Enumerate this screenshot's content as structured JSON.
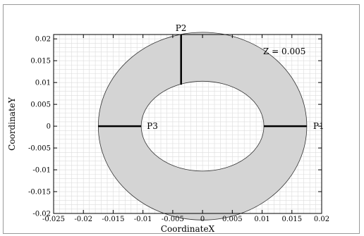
{
  "chart_data": {
    "type": "contour",
    "annotation": "Z = 0.005",
    "xlabel": "CoordinateX",
    "ylabel": "CoordinateY",
    "xlim": [
      -0.025,
      0.02
    ],
    "ylim": [
      -0.02,
      0.021
    ],
    "x_ticks": [
      "-0.025",
      "-0.02",
      "-0.015",
      "-0.01",
      "-0.005",
      "0",
      "0.005",
      "0.01",
      "0.015",
      "0.02"
    ],
    "y_ticks": [
      "-0.02",
      "-0.015",
      "-0.01",
      "-0.005",
      "0",
      "0.005",
      "0.01",
      "0.015",
      "0.02"
    ],
    "grid": true,
    "fill_color": "#d4d4d4",
    "outer_ellipse": {
      "cx": 0,
      "cy": 0,
      "rx": 0.0175,
      "ry": 0.0215
    },
    "inner_circle": {
      "cx": 0,
      "cy": 0,
      "r": 0.0103
    },
    "probe_lines": [
      {
        "name": "P1",
        "x": [
          0.0103,
          0.0175
        ],
        "y": [
          0,
          0
        ]
      },
      {
        "name": "P2",
        "x": [
          -0.0036,
          -0.0036
        ],
        "y": [
          0.0095,
          0.021
        ]
      },
      {
        "name": "P3",
        "x": [
          -0.0175,
          -0.0103
        ],
        "y": [
          0,
          0
        ]
      }
    ]
  }
}
